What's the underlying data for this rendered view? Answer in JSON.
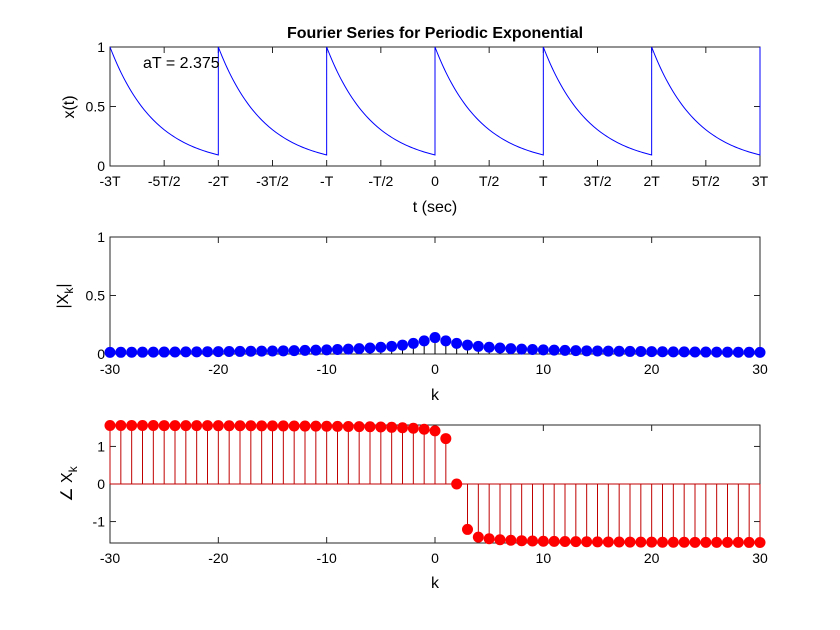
{
  "chart_data": [
    {
      "type": "line",
      "title": "Fourier Series for Periodic Exponential",
      "xlabel": "t (sec)",
      "ylabel": "x(t)",
      "annotation": "aT = 2.375",
      "aT": 2.375,
      "periods_shown": [
        -3,
        3
      ],
      "xlim": [
        -3,
        3
      ],
      "ylim": [
        0,
        1
      ],
      "x_ticks": [
        -3,
        -2.5,
        -2,
        -1.5,
        -1,
        -0.5,
        0,
        0.5,
        1,
        1.5,
        2,
        2.5,
        3
      ],
      "x_tick_labels": [
        "-3T",
        "-5T/2",
        "-2T",
        "-3T/2",
        "-T",
        "-T/2",
        "0",
        "T/2",
        "T",
        "3T/2",
        "2T",
        "5T/2",
        "3T"
      ],
      "y_ticks": [
        0,
        0.5,
        1
      ],
      "y_tick_labels": [
        "0",
        "0.5",
        "1"
      ],
      "series_color": "#0000ff"
    },
    {
      "type": "stem",
      "xlabel": "k",
      "ylabel_main": "|X",
      "ylabel_sub": "k",
      "ylabel_close": "|",
      "k_range": [
        -30,
        30
      ],
      "xlim": [
        -30,
        30
      ],
      "ylim": [
        0,
        1
      ],
      "x_ticks": [
        -30,
        -20,
        -10,
        0,
        10,
        20,
        30
      ],
      "x_tick_labels": [
        "-30",
        "-20",
        "-10",
        "0",
        "10",
        "20",
        "30"
      ],
      "y_ticks": [
        0,
        0.5,
        1
      ],
      "y_tick_labels": [
        "0",
        "0.5",
        "1"
      ],
      "marker_color": "#0000ff",
      "stem_color": "#000000",
      "values": [
        0.0141,
        0.0145,
        0.015,
        0.0155,
        0.016,
        0.0166,
        0.0172,
        0.0178,
        0.0185,
        0.0193,
        0.0201,
        0.021,
        0.022,
        0.0231,
        0.0243,
        0.0257,
        0.0272,
        0.0289,
        0.0308,
        0.033,
        0.0356,
        0.0385,
        0.042,
        0.0461,
        0.0512,
        0.0575,
        0.0656,
        0.0763,
        0.0911,
        0.1124,
        0.1406,
        0.1124,
        0.0911,
        0.0763,
        0.0656,
        0.0575,
        0.0512,
        0.0461,
        0.042,
        0.0385,
        0.0356,
        0.033,
        0.0308,
        0.0289,
        0.0272,
        0.0257,
        0.0243,
        0.0231,
        0.022,
        0.021,
        0.0201,
        0.0193,
        0.0185,
        0.0178,
        0.0172,
        0.0166,
        0.016,
        0.0155,
        0.015,
        0.0145,
        0.0141
      ]
    },
    {
      "type": "stem",
      "xlabel": "k",
      "ylabel_main": "∠ X",
      "ylabel_sub": "k",
      "k_range": [
        -30,
        30
      ],
      "xlim": [
        -30,
        30
      ],
      "ylim": [
        -1.5708,
        1.5708
      ],
      "x_ticks": [
        -30,
        -20,
        -10,
        0,
        10,
        20,
        30
      ],
      "x_tick_labels": [
        "-30",
        "-20",
        "-10",
        "0",
        "10",
        "20",
        "30"
      ],
      "y_ticks": [
        -1,
        0,
        1
      ],
      "y_tick_labels": [
        "-1",
        "0",
        "1"
      ],
      "marker_color": "#ff0000",
      "stem_color": "#c00000",
      "values": [
        1.5582,
        1.5578,
        1.5573,
        1.5569,
        1.5564,
        1.5558,
        1.5553,
        1.5547,
        1.554,
        1.5533,
        1.5525,
        1.5517,
        1.5508,
        1.5498,
        1.5487,
        1.5474,
        1.546,
        1.5444,
        1.5426,
        1.5405,
        1.5382,
        1.5354,
        1.5321,
        1.5282,
        1.5233,
        1.5172,
        1.5093,
        1.4986,
        1.4837,
        1.4588,
        1.4136,
        1.2097,
        0.0,
        -1.2097,
        -1.4136,
        -1.4588,
        -1.4837,
        -1.4986,
        -1.5093,
        -1.5172,
        -1.5233,
        -1.5282,
        -1.5321,
        -1.5354,
        -1.5382,
        -1.5405,
        -1.5426,
        -1.5444,
        -1.546,
        -1.5474,
        -1.5487,
        -1.5498,
        -1.5508,
        -1.5517,
        -1.5525,
        -1.5533,
        -1.554,
        -1.5547,
        -1.5553,
        -1.5558,
        -1.5564
      ]
    }
  ]
}
